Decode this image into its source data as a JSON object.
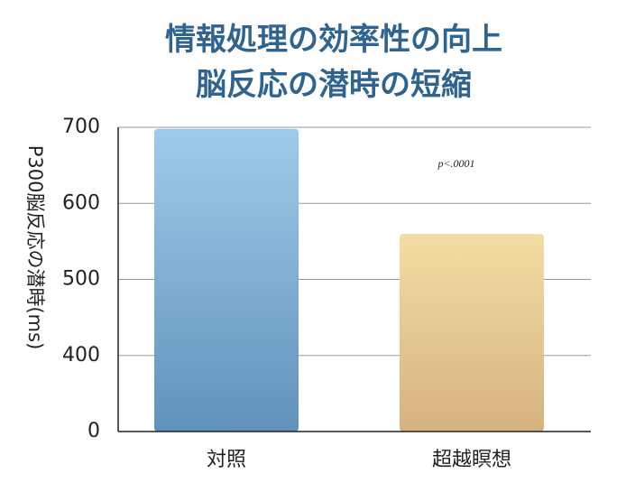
{
  "chart_data": {
    "type": "bar",
    "title": [
      "情報処理の効率性の向上",
      "脳反応の潜時の短縮"
    ],
    "y_label": "P300脳反応の潜時(ms)",
    "annotation": "p<.0001",
    "categories": [
      "対照",
      "超越瞑想"
    ],
    "values": [
      698,
      560
    ],
    "gradients": [
      [
        "#9fcbea",
        "#6192ba"
      ],
      [
        "#f3dea3",
        "#d6b27f"
      ]
    ],
    "ylim": [
      0,
      700
    ],
    "ybreak": [
      0,
      400
    ],
    "yticks": [
      0,
      400,
      500,
      600,
      700
    ],
    "grid": true
  }
}
